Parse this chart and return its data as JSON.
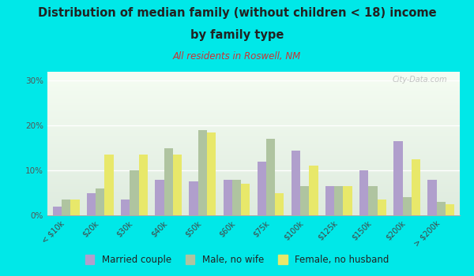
{
  "categories": [
    "< $10k",
    "$20k",
    "$30k",
    "$40k",
    "$50k",
    "$60k",
    "$75k",
    "$100k",
    "$125k",
    "$150k",
    "$200k",
    "> $200k"
  ],
  "married_couple": [
    2.0,
    5.0,
    3.5,
    8.0,
    7.5,
    8.0,
    12.0,
    14.5,
    6.5,
    10.0,
    16.5,
    8.0
  ],
  "male_no_wife": [
    3.5,
    6.0,
    10.0,
    15.0,
    19.0,
    8.0,
    17.0,
    6.5,
    6.5,
    6.5,
    4.0,
    3.0
  ],
  "female_no_husband": [
    3.5,
    13.5,
    13.5,
    13.5,
    18.5,
    7.0,
    5.0,
    11.0,
    6.5,
    3.5,
    12.5,
    2.5
  ],
  "married_color": "#b09fcc",
  "male_color": "#afc4a0",
  "female_color": "#e8e86a",
  "title_line1": "Distribution of median family (without children < 18) income",
  "title_line2": "by family type",
  "subtitle": "All residents in Roswell, NM",
  "yticks": [
    0,
    10,
    20,
    30
  ],
  "ylim": [
    0,
    32
  ],
  "bg_outer": "#00e8e8",
  "bg_chart_top": "#dde8dd",
  "bg_chart_bottom": "#f5f8f0",
  "watermark": "City-Data.com",
  "title_color": "#222222",
  "subtitle_color": "#cc3333",
  "legend_labels": [
    "Married couple",
    "Male, no wife",
    "Female, no husband"
  ]
}
